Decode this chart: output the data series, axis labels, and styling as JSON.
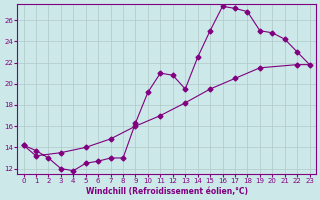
{
  "title": "",
  "xlabel": "Windchill (Refroidissement éolien,°C)",
  "ylabel": "",
  "bg_color": "#cce8e8",
  "line_color": "#800080",
  "marker": "D",
  "markersize": 2.5,
  "linewidth": 0.8,
  "xlim": [
    -0.5,
    23.5
  ],
  "ylim": [
    11.5,
    27.5
  ],
  "xticks": [
    0,
    1,
    2,
    3,
    4,
    5,
    6,
    7,
    8,
    9,
    10,
    11,
    12,
    13,
    14,
    15,
    16,
    17,
    18,
    19,
    20,
    21,
    22,
    23
  ],
  "yticks": [
    12,
    14,
    16,
    18,
    20,
    22,
    24,
    26
  ],
  "grid_color": "#b0c8c8",
  "series": [
    [
      0,
      14.2
    ],
    [
      1,
      13.7
    ],
    [
      2,
      13.0
    ],
    [
      3,
      12.0
    ],
    [
      4,
      11.8
    ],
    [
      5,
      12.5
    ],
    [
      6,
      12.7
    ],
    [
      7,
      13.0
    ],
    [
      8,
      13.0
    ],
    [
      9,
      16.3
    ],
    [
      10,
      19.2
    ],
    [
      11,
      21.0
    ],
    [
      12,
      20.8
    ],
    [
      13,
      19.5
    ],
    [
      14,
      22.5
    ],
    [
      15,
      25.0
    ],
    [
      16,
      27.3
    ],
    [
      17,
      27.1
    ],
    [
      18,
      26.8
    ],
    [
      19,
      25.0
    ],
    [
      20,
      24.8
    ],
    [
      21,
      24.2
    ],
    [
      22,
      23.0
    ],
    [
      23,
      21.8
    ],
    [
      22,
      21.8
    ],
    [
      19,
      21.5
    ],
    [
      17,
      20.5
    ],
    [
      15,
      19.5
    ],
    [
      13,
      18.2
    ],
    [
      11,
      17.0
    ],
    [
      9,
      16.0
    ],
    [
      7,
      14.8
    ],
    [
      5,
      14.0
    ],
    [
      3,
      13.5
    ],
    [
      1,
      13.2
    ],
    [
      0,
      14.2
    ]
  ]
}
